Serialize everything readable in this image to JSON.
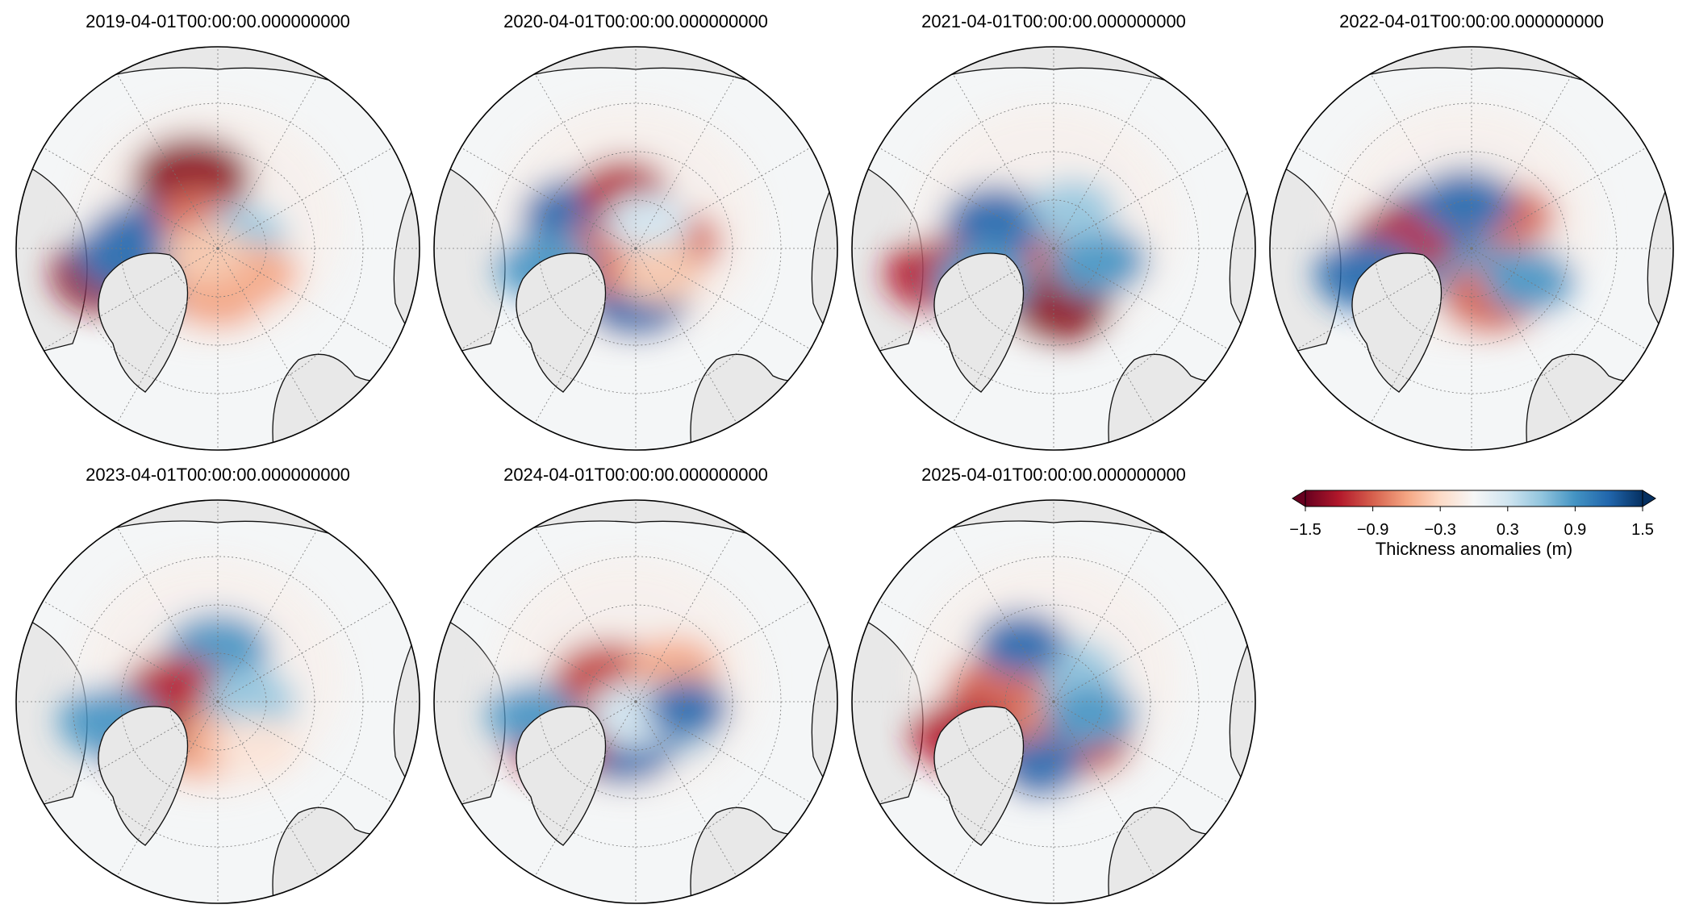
{
  "panels": [
    {
      "title": "2019-04-01T00:00:00.000000000",
      "blobs": [
        [
          -0.2,
          -0.55,
          1.0,
          "#8b0d1f"
        ],
        [
          -0.55,
          -0.05,
          1.0,
          "#1b5fa5"
        ],
        [
          -0.35,
          0.2,
          0.9,
          "#2a72b5"
        ],
        [
          0.0,
          0.35,
          0.7,
          "#f2a07e"
        ],
        [
          -0.15,
          -0.2,
          0.6,
          "#d6604d"
        ],
        [
          0.2,
          -0.1,
          0.5,
          "#92c5de"
        ],
        [
          -0.85,
          0.2,
          0.9,
          "#8b0d1f"
        ],
        [
          -0.7,
          0.05,
          0.8,
          "#2166ac"
        ],
        [
          0.3,
          0.2,
          0.5,
          "#f4a582"
        ],
        [
          -0.1,
          0.05,
          0.5,
          "#f7c6aa"
        ]
      ]
    },
    {
      "title": "2020-04-01T00:00:00.000000000",
      "blobs": [
        [
          -0.45,
          -0.25,
          0.9,
          "#2166ac"
        ],
        [
          0.25,
          -0.05,
          0.8,
          "#d6604d"
        ],
        [
          0.0,
          0.4,
          0.8,
          "#2166ac"
        ],
        [
          -0.15,
          0.1,
          0.6,
          "#f4a582"
        ],
        [
          -0.1,
          -0.45,
          0.6,
          "#b2182b"
        ],
        [
          -0.3,
          0.1,
          0.7,
          "#d6604d"
        ],
        [
          0.1,
          -0.2,
          0.5,
          "#d1e5f0"
        ],
        [
          -0.7,
          0.15,
          0.7,
          "#4393c3"
        ],
        [
          0.2,
          0.2,
          0.5,
          "#f7c6aa"
        ]
      ]
    },
    {
      "title": "2021-04-01T00:00:00.000000000",
      "blobs": [
        [
          0.0,
          0.15,
          1.0,
          "#c2413a"
        ],
        [
          -0.2,
          0.0,
          1.0,
          "#d6604d"
        ],
        [
          0.05,
          0.45,
          0.8,
          "#8b0d1f"
        ],
        [
          -0.45,
          -0.2,
          0.8,
          "#2166ac"
        ],
        [
          0.35,
          0.1,
          0.7,
          "#4393c3"
        ],
        [
          -0.9,
          0.2,
          0.8,
          "#b2182b"
        ],
        [
          -0.55,
          0.25,
          0.7,
          "#4393c3"
        ],
        [
          0.15,
          -0.3,
          0.5,
          "#92c5de"
        ]
      ]
    },
    {
      "title": "2022-04-01T00:00:00.000000000",
      "blobs": [
        [
          -0.1,
          0.1,
          1.0,
          "#4393c3"
        ],
        [
          -0.35,
          -0.2,
          0.8,
          "#2166ac"
        ],
        [
          -0.55,
          -0.05,
          0.8,
          "#b2182b"
        ],
        [
          0.15,
          0.4,
          0.7,
          "#d6604d"
        ],
        [
          0.3,
          -0.25,
          0.6,
          "#d6604d"
        ],
        [
          -0.05,
          -0.35,
          0.7,
          "#2166ac"
        ],
        [
          -0.8,
          0.2,
          0.8,
          "#2166ac"
        ],
        [
          0.45,
          0.25,
          0.6,
          "#4393c3"
        ]
      ]
    },
    {
      "title": "2023-04-01T00:00:00.000000000",
      "blobs": [
        [
          -0.1,
          0.1,
          1.0,
          "#f4a582"
        ],
        [
          0.0,
          -0.4,
          0.8,
          "#4393c3"
        ],
        [
          -0.35,
          -0.1,
          0.7,
          "#b2182b"
        ],
        [
          0.25,
          0.0,
          0.6,
          "#92c5de"
        ],
        [
          -0.15,
          0.35,
          0.6,
          "#f4a582"
        ],
        [
          -0.65,
          0.25,
          0.7,
          "#8b0d1f"
        ],
        [
          -0.85,
          0.15,
          0.7,
          "#4393c3"
        ],
        [
          0.3,
          0.35,
          0.5,
          "#fbe3d6"
        ]
      ]
    },
    {
      "title": "2024-04-01T00:00:00.000000000",
      "blobs": [
        [
          -0.2,
          -0.15,
          1.0,
          "#c2413a"
        ],
        [
          0.25,
          0.15,
          0.8,
          "#92c5de"
        ],
        [
          -0.1,
          0.35,
          0.8,
          "#2166ac"
        ],
        [
          0.3,
          -0.25,
          0.6,
          "#f4a582"
        ],
        [
          -0.6,
          0.3,
          0.8,
          "#b2182b"
        ],
        [
          -0.8,
          0.1,
          0.6,
          "#4393c3"
        ],
        [
          0.0,
          0.1,
          0.6,
          "#d1e5f0"
        ],
        [
          0.4,
          0.05,
          0.5,
          "#2166ac"
        ]
      ]
    },
    {
      "title": "2025-04-01T00:00:00.000000000",
      "blobs": [
        [
          -0.1,
          0.05,
          1.0,
          "#f4a582"
        ],
        [
          0.2,
          0.3,
          0.8,
          "#c2413a"
        ],
        [
          0.1,
          -0.2,
          0.8,
          "#92c5de"
        ],
        [
          -0.45,
          -0.1,
          0.7,
          "#d6604d"
        ],
        [
          -0.25,
          -0.45,
          0.6,
          "#2166ac"
        ],
        [
          -0.7,
          0.25,
          0.8,
          "#b2182b"
        ],
        [
          0.3,
          0.1,
          0.6,
          "#4393c3"
        ],
        [
          -0.1,
          0.5,
          0.5,
          "#2166ac"
        ]
      ]
    }
  ],
  "colorbar": {
    "label": "Thickness anomalies (m)",
    "ticks": [
      "−1.5",
      "−0.9",
      "−0.3",
      "0.3",
      "0.9",
      "1.5"
    ],
    "range": [
      -1.5,
      1.5
    ],
    "colors": [
      "#67001f",
      "#b2182b",
      "#d6604d",
      "#f4a582",
      "#fddbc7",
      "#f7f7f7",
      "#d1e5f0",
      "#92c5de",
      "#4393c3",
      "#2166ac",
      "#053061"
    ]
  },
  "style": {
    "land": "#e8e8e8",
    "ocean": "#f4f6f7",
    "coast": "#111111",
    "grid": "#777777"
  }
}
